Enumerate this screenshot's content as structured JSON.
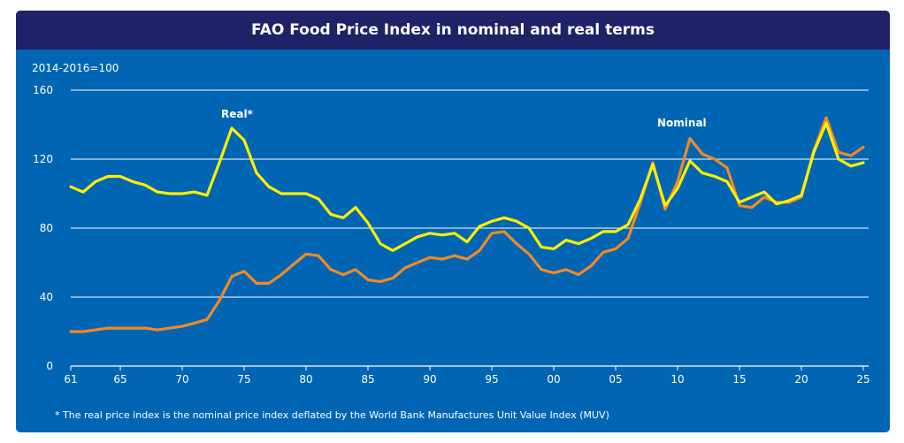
{
  "chart_data": {
    "type": "line",
    "title": "FAO Food Price Index in nominal and real terms",
    "unit_label": "2014-2016=100",
    "ylim": [
      0,
      160
    ],
    "yticks": [
      0,
      40,
      80,
      120,
      160
    ],
    "xlim": [
      1961,
      2025
    ],
    "xticks": [
      {
        "year": 1961,
        "label": "61"
      },
      {
        "year": 1965,
        "label": "65"
      },
      {
        "year": 1970,
        "label": "70"
      },
      {
        "year": 1975,
        "label": "75"
      },
      {
        "year": 1980,
        "label": "80"
      },
      {
        "year": 1985,
        "label": "85"
      },
      {
        "year": 1990,
        "label": "90"
      },
      {
        "year": 1995,
        "label": "95"
      },
      {
        "year": 2000,
        "label": "00"
      },
      {
        "year": 2005,
        "label": "05"
      },
      {
        "year": 2010,
        "label": "10"
      },
      {
        "year": 2015,
        "label": "15"
      },
      {
        "year": 2020,
        "label": "20"
      },
      {
        "year": 2025,
        "label": "25"
      }
    ],
    "grid": true,
    "footnote": "* The real price index is the nominal price index deflated by the World Bank Manufactures Unit Value Index (MUV)",
    "x": [
      1961,
      1962,
      1963,
      1964,
      1965,
      1966,
      1967,
      1968,
      1969,
      1970,
      1971,
      1972,
      1973,
      1974,
      1975,
      1976,
      1977,
      1978,
      1979,
      1980,
      1981,
      1982,
      1983,
      1984,
      1985,
      1986,
      1987,
      1988,
      1989,
      1990,
      1991,
      1992,
      1993,
      1994,
      1995,
      1996,
      1997,
      1998,
      1999,
      2000,
      2001,
      2002,
      2003,
      2004,
      2005,
      2006,
      2007,
      2008,
      2009,
      2010,
      2011,
      2012,
      2013,
      2014,
      2015,
      2016,
      2017,
      2018,
      2019,
      2020,
      2021,
      2022,
      2023,
      2024,
      2025
    ],
    "series": [
      {
        "name": "Nominal",
        "color": "#f08a24",
        "values": [
          20,
          20,
          21,
          22,
          22,
          22,
          22,
          21,
          22,
          23,
          25,
          27,
          38,
          52,
          55,
          48,
          48,
          53,
          59,
          65,
          64,
          56,
          53,
          56,
          50,
          49,
          51,
          57,
          60,
          63,
          62,
          64,
          62,
          67,
          77,
          78,
          71,
          65,
          56,
          54,
          56,
          53,
          58,
          66,
          68,
          74,
          95,
          118,
          91,
          107,
          132,
          123,
          120,
          115,
          93,
          92,
          98,
          95,
          95,
          98,
          125,
          144,
          124,
          122,
          127
        ]
      },
      {
        "name": "Real",
        "color": "#fff000",
        "values": [
          104,
          101,
          107,
          110,
          110,
          107,
          105,
          101,
          100,
          100,
          101,
          99,
          118,
          138,
          131,
          112,
          104,
          100,
          100,
          100,
          97,
          88,
          86,
          92,
          83,
          71,
          67,
          71,
          75,
          77,
          76,
          77,
          72,
          81,
          84,
          86,
          84,
          80,
          69,
          68,
          73,
          71,
          74,
          78,
          78,
          82,
          97,
          117,
          93,
          103,
          119,
          112,
          110,
          107,
          95,
          98,
          101,
          94,
          96,
          99,
          124,
          141,
          120,
          116,
          118
        ]
      }
    ],
    "labels": {
      "real": "Real*",
      "nominal": "Nominal"
    }
  }
}
